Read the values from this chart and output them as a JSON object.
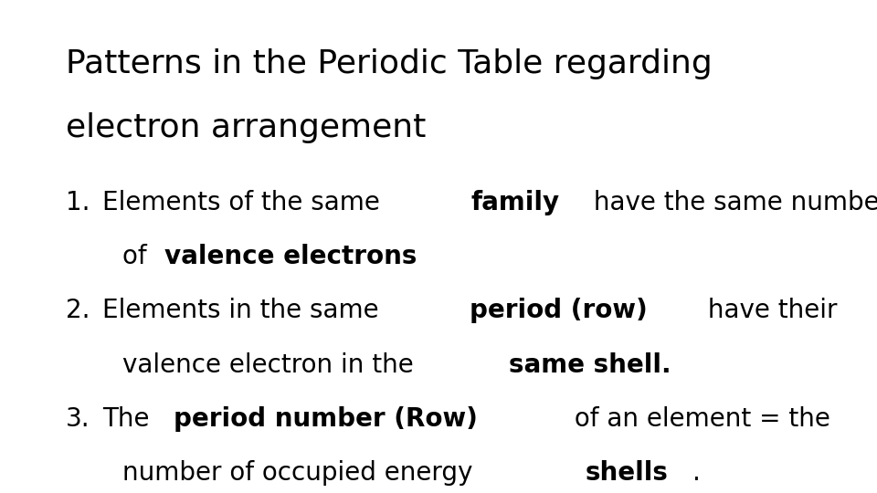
{
  "background_color": "#ffffff",
  "title_line1": "Patterns in the Periodic Table regarding",
  "title_line2": "electron arrangement",
  "title_fontsize": 26,
  "body_fontsize": 20,
  "items": [
    {
      "number": "1.",
      "indent_continuation": true,
      "lines": [
        [
          {
            "text": "Elements of the same ",
            "bold": false
          },
          {
            "text": "family",
            "bold": true
          },
          {
            "text": " have the same number",
            "bold": false
          }
        ],
        [
          {
            "text": "of ",
            "bold": false
          },
          {
            "text": "valence electrons",
            "bold": true
          }
        ]
      ]
    },
    {
      "number": "2.",
      "indent_continuation": true,
      "lines": [
        [
          {
            "text": "Elements in the same ",
            "bold": false
          },
          {
            "text": "period (row)",
            "bold": true
          },
          {
            "text": " have their",
            "bold": false
          }
        ],
        [
          {
            "text": "valence electron in the ",
            "bold": false
          },
          {
            "text": "same shell.",
            "bold": true
          }
        ]
      ]
    },
    {
      "number": "3.",
      "indent_continuation": true,
      "lines": [
        [
          {
            "text": "The ",
            "bold": false
          },
          {
            "text": "period number (Row)",
            "bold": true
          },
          {
            "text": " of an element = the",
            "bold": false
          }
        ],
        [
          {
            "text": "number of occupied energy ",
            "bold": false
          },
          {
            "text": "shells",
            "bold": true
          },
          {
            "text": ".",
            "bold": false
          }
        ]
      ]
    }
  ]
}
